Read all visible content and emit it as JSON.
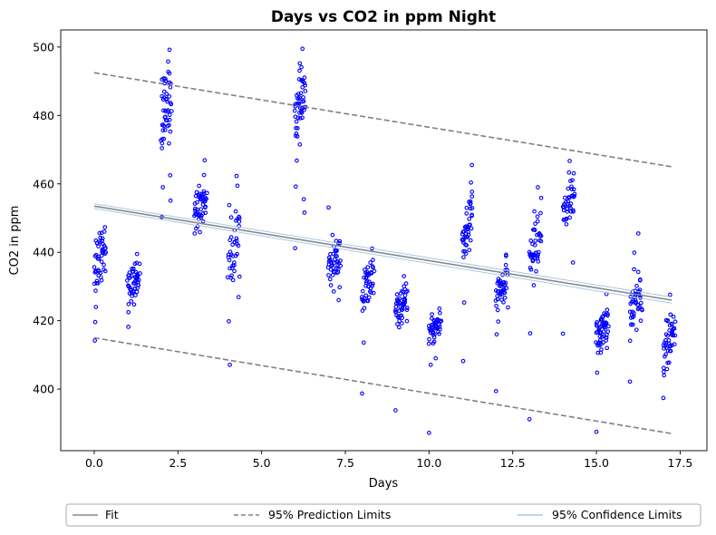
{
  "chart_data": {
    "type": "scatter",
    "title": "Days vs CO2 in ppm Night",
    "xlabel": "Days",
    "ylabel": "CO2 in ppm",
    "xlim": [
      -1.0,
      18.3
    ],
    "ylim": [
      382,
      505
    ],
    "xticks": [
      0.0,
      2.5,
      5.0,
      7.5,
      10.0,
      12.5,
      15.0,
      17.5
    ],
    "xtick_labels": [
      "0.0",
      "2.5",
      "5.0",
      "7.5",
      "10.0",
      "12.5",
      "15.0",
      "17.5"
    ],
    "yticks": [
      400,
      420,
      440,
      460,
      480,
      500
    ],
    "ytick_labels": [
      "400",
      "420",
      "440",
      "460",
      "480",
      "500"
    ],
    "grid": false,
    "legend_position": "bottom",
    "colors": {
      "points": "#0000ff",
      "fit": "#888888",
      "prediction": "#808080",
      "confidence": "#a6c8e6"
    },
    "series": [
      {
        "name": "Fit",
        "style": "solid",
        "x": [
          0.0,
          17.25
        ],
        "y": [
          453.5,
          426.0
        ]
      },
      {
        "name": "95% Prediction Limits",
        "style": "dashed",
        "upper": {
          "x": [
            0.0,
            17.25
          ],
          "y": [
            492.5,
            465.0
          ]
        },
        "lower": {
          "x": [
            0.0,
            17.25
          ],
          "y": [
            415.0,
            387.0
          ]
        }
      },
      {
        "name": "95% Confidence Limits",
        "style": "solid",
        "upper": {
          "x": [
            0.0,
            17.25
          ],
          "y": [
            454.2,
            426.9
          ]
        },
        "lower": {
          "x": [
            0.0,
            17.25
          ],
          "y": [
            452.8,
            425.1
          ]
        }
      }
    ],
    "clusters": [
      {
        "x0": 0.0,
        "x1": 0.35,
        "n": 48,
        "mean": 440,
        "spread": 9,
        "outliers": [
          [
            0.02,
            414.2
          ],
          [
            0.03,
            419.6
          ],
          [
            0.05,
            424.0
          ]
        ]
      },
      {
        "x0": 1.0,
        "x1": 1.35,
        "n": 50,
        "mean": 431,
        "spread": 5,
        "outliers": [
          [
            1.02,
            418.2
          ],
          [
            1.28,
            439.5
          ]
        ]
      },
      {
        "x0": 2.0,
        "x1": 2.3,
        "n": 48,
        "mean": 482,
        "spread": 10,
        "outliers": [
          [
            2.02,
            450.3
          ],
          [
            2.05,
            459.0
          ],
          [
            2.25,
            499.2
          ],
          [
            2.27,
            462.5
          ],
          [
            2.28,
            455.1
          ]
        ]
      },
      {
        "x0": 3.0,
        "x1": 3.35,
        "n": 50,
        "mean": 454,
        "spread": 6,
        "outliers": [
          [
            3.0,
            445.5
          ],
          [
            3.3,
            466.9
          ]
        ]
      },
      {
        "x0": 4.0,
        "x1": 4.35,
        "n": 40,
        "mean": 442,
        "spread": 10,
        "outliers": [
          [
            4.05,
            407.1
          ],
          [
            4.02,
            419.8
          ],
          [
            4.25,
            462.3
          ]
        ]
      },
      {
        "x0": 6.0,
        "x1": 6.3,
        "n": 48,
        "mean": 483,
        "spread": 8,
        "outliers": [
          [
            6.0,
            441.2
          ],
          [
            6.02,
            459.2
          ],
          [
            6.05,
            466.8
          ],
          [
            6.22,
            499.5
          ],
          [
            6.28,
            451.6
          ],
          [
            6.26,
            455.5
          ]
        ]
      },
      {
        "x0": 7.0,
        "x1": 7.35,
        "n": 45,
        "mean": 437,
        "spread": 6,
        "outliers": [
          [
            7.0,
            453.1
          ],
          [
            7.3,
            426.0
          ]
        ]
      },
      {
        "x0": 8.0,
        "x1": 8.35,
        "n": 45,
        "mean": 430,
        "spread": 7,
        "outliers": [
          [
            8.0,
            398.7
          ],
          [
            8.05,
            413.6
          ],
          [
            8.3,
            441.1
          ]
        ]
      },
      {
        "x0": 9.0,
        "x1": 9.35,
        "n": 50,
        "mean": 424,
        "spread": 4,
        "outliers": [
          [
            9.0,
            393.8
          ],
          [
            9.25,
            433.0
          ]
        ]
      },
      {
        "x0": 10.0,
        "x1": 10.35,
        "n": 45,
        "mean": 418,
        "spread": 4,
        "outliers": [
          [
            10.0,
            387.2
          ],
          [
            10.05,
            407.1
          ],
          [
            10.2,
            409.0
          ]
        ]
      },
      {
        "x0": 11.0,
        "x1": 11.3,
        "n": 45,
        "mean": 447,
        "spread": 9,
        "outliers": [
          [
            11.02,
            408.2
          ],
          [
            11.05,
            425.3
          ],
          [
            11.28,
            465.5
          ]
        ]
      },
      {
        "x0": 12.0,
        "x1": 12.35,
        "n": 45,
        "mean": 429,
        "spread": 5,
        "outliers": [
          [
            12.0,
            399.4
          ],
          [
            12.02,
            416.0
          ],
          [
            12.3,
            438.9
          ]
        ]
      },
      {
        "x0": 13.0,
        "x1": 13.35,
        "n": 45,
        "mean": 442,
        "spread": 8,
        "outliers": [
          [
            13.0,
            391.2
          ],
          [
            13.02,
            416.3
          ],
          [
            13.25,
            459.0
          ]
        ]
      },
      {
        "x0": 14.0,
        "x1": 14.35,
        "n": 40,
        "mean": 455,
        "spread": 6,
        "outliers": [
          [
            14.0,
            416.2
          ],
          [
            14.2,
            466.7
          ],
          [
            14.3,
            437.0
          ]
        ]
      },
      {
        "x0": 15.0,
        "x1": 15.35,
        "n": 55,
        "mean": 417,
        "spread": 5,
        "outliers": [
          [
            15.0,
            387.5
          ],
          [
            15.02,
            404.8
          ],
          [
            15.3,
            427.8
          ]
        ]
      },
      {
        "x0": 16.0,
        "x1": 16.35,
        "n": 45,
        "mean": 425,
        "spread": 9,
        "outliers": [
          [
            16.0,
            402.2
          ],
          [
            16.25,
            445.5
          ],
          [
            16.3,
            424.0
          ]
        ]
      },
      {
        "x0": 17.0,
        "x1": 17.35,
        "n": 45,
        "mean": 414,
        "spread": 6,
        "outliers": [
          [
            17.0,
            397.4
          ],
          [
            17.02,
            404.0
          ],
          [
            17.2,
            427.6
          ]
        ]
      }
    ]
  }
}
